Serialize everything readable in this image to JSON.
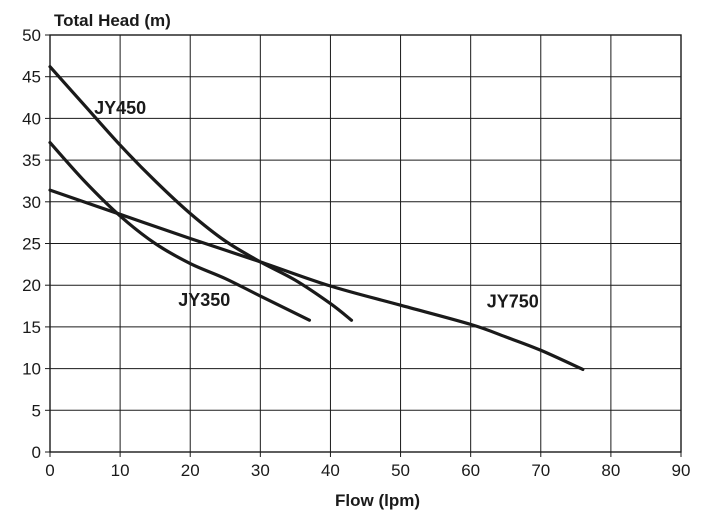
{
  "chart_data": {
    "type": "line",
    "title": "",
    "xlabel": "Flow (lpm)",
    "ylabel": "Total Head (m)",
    "xlim": [
      0,
      90
    ],
    "ylim": [
      0,
      50
    ],
    "x_ticks": [
      0,
      10,
      20,
      30,
      40,
      50,
      60,
      70,
      80,
      90
    ],
    "y_ticks": [
      0,
      5,
      10,
      15,
      20,
      25,
      30,
      35,
      40,
      45,
      50
    ],
    "grid": true,
    "legend": "none",
    "series": [
      {
        "name": "JY450",
        "x": [
          0,
          5,
          10,
          15,
          20,
          25,
          30,
          35,
          40,
          43
        ],
        "y": [
          46.2,
          41.5,
          36.8,
          32.5,
          28.6,
          25.3,
          22.8,
          20.6,
          17.8,
          15.8
        ]
      },
      {
        "name": "JY350",
        "x": [
          0,
          5,
          10,
          15,
          20,
          25,
          30,
          37
        ],
        "y": [
          37.1,
          32.4,
          28.3,
          25.0,
          22.6,
          20.8,
          18.7,
          15.8
        ]
      },
      {
        "name": "JY750",
        "x": [
          0,
          10,
          20,
          30,
          40,
          50,
          60,
          65,
          70,
          76
        ],
        "y": [
          31.4,
          28.5,
          25.6,
          22.8,
          19.9,
          17.6,
          15.3,
          13.8,
          12.2,
          9.9
        ]
      }
    ]
  }
}
